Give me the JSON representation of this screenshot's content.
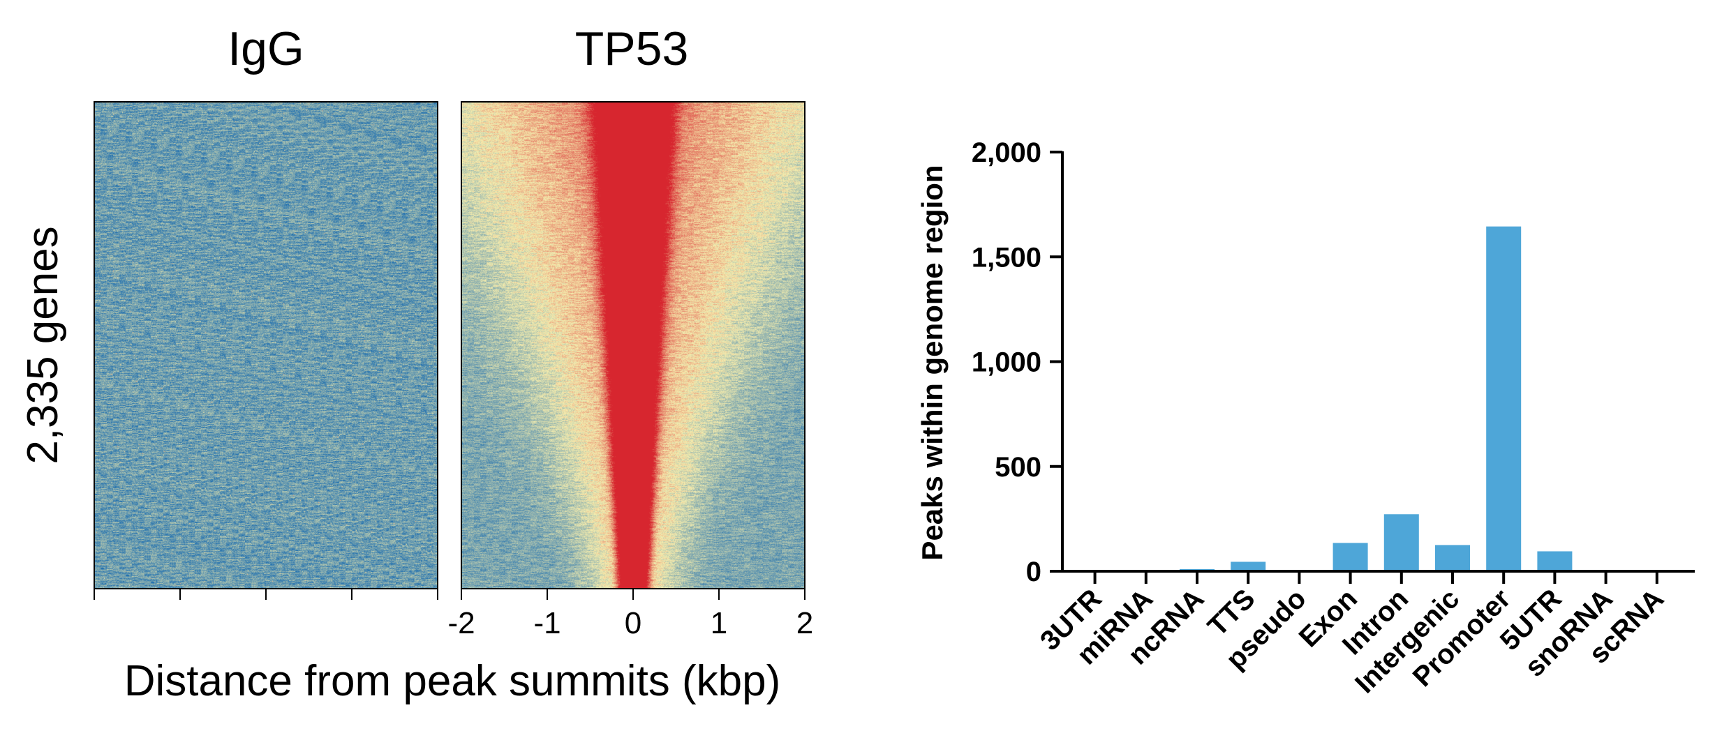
{
  "chart_data": [
    {
      "type": "heatmap",
      "row_label": "2,335 genes",
      "xlabel": "Distance from peak summits (kbp)",
      "x_ticks": [
        "-2",
        "-1",
        "0",
        "1",
        "2"
      ],
      "x_range": [
        -2,
        2
      ],
      "rows": 2335,
      "panels": [
        {
          "name": "IgG",
          "pattern": "uniform-low"
        },
        {
          "name": "TP53",
          "pattern": "centered-enrichment"
        }
      ],
      "colors": {
        "low": "#1f6fb0",
        "mid": "#f6eeae",
        "high": "#d7262f"
      }
    },
    {
      "type": "bar",
      "ylabel": "Peaks within genome region",
      "categories": [
        "3UTR",
        "miRNA",
        "ncRNA",
        "TTS",
        "pseudo",
        "Exon",
        "Intron",
        "Intergenic",
        "Promoter",
        "5UTR",
        "snoRNA",
        "scRNA"
      ],
      "values": [
        2,
        1,
        10,
        45,
        3,
        135,
        272,
        125,
        1645,
        95,
        1,
        1
      ],
      "ylim": [
        0,
        2000
      ],
      "y_ticks": [
        "0",
        "500",
        "1,000",
        "1,500",
        "2,000"
      ],
      "bar_color": "#4ea6d8"
    }
  ]
}
